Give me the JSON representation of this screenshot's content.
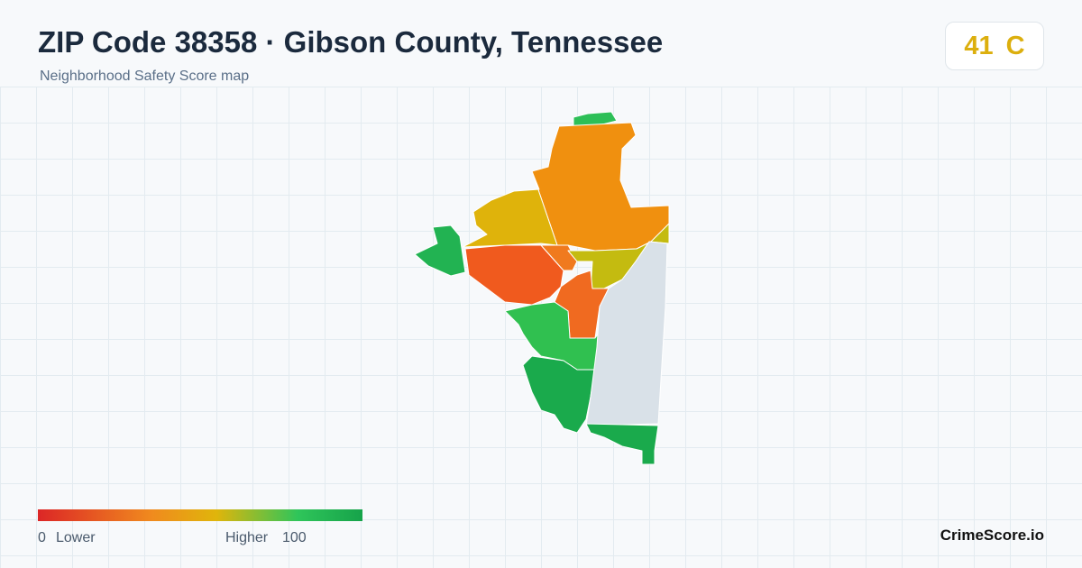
{
  "header": {
    "title": "ZIP Code 38358 · Gibson County, Tennessee",
    "subtitle": "Neighborhood Safety Score map"
  },
  "score": {
    "value": 41,
    "grade": "C"
  },
  "legend": {
    "min": 0,
    "min_label": "Lower",
    "max_label": "Higher",
    "max": 100
  },
  "brand": "CrimeScore.io"
}
